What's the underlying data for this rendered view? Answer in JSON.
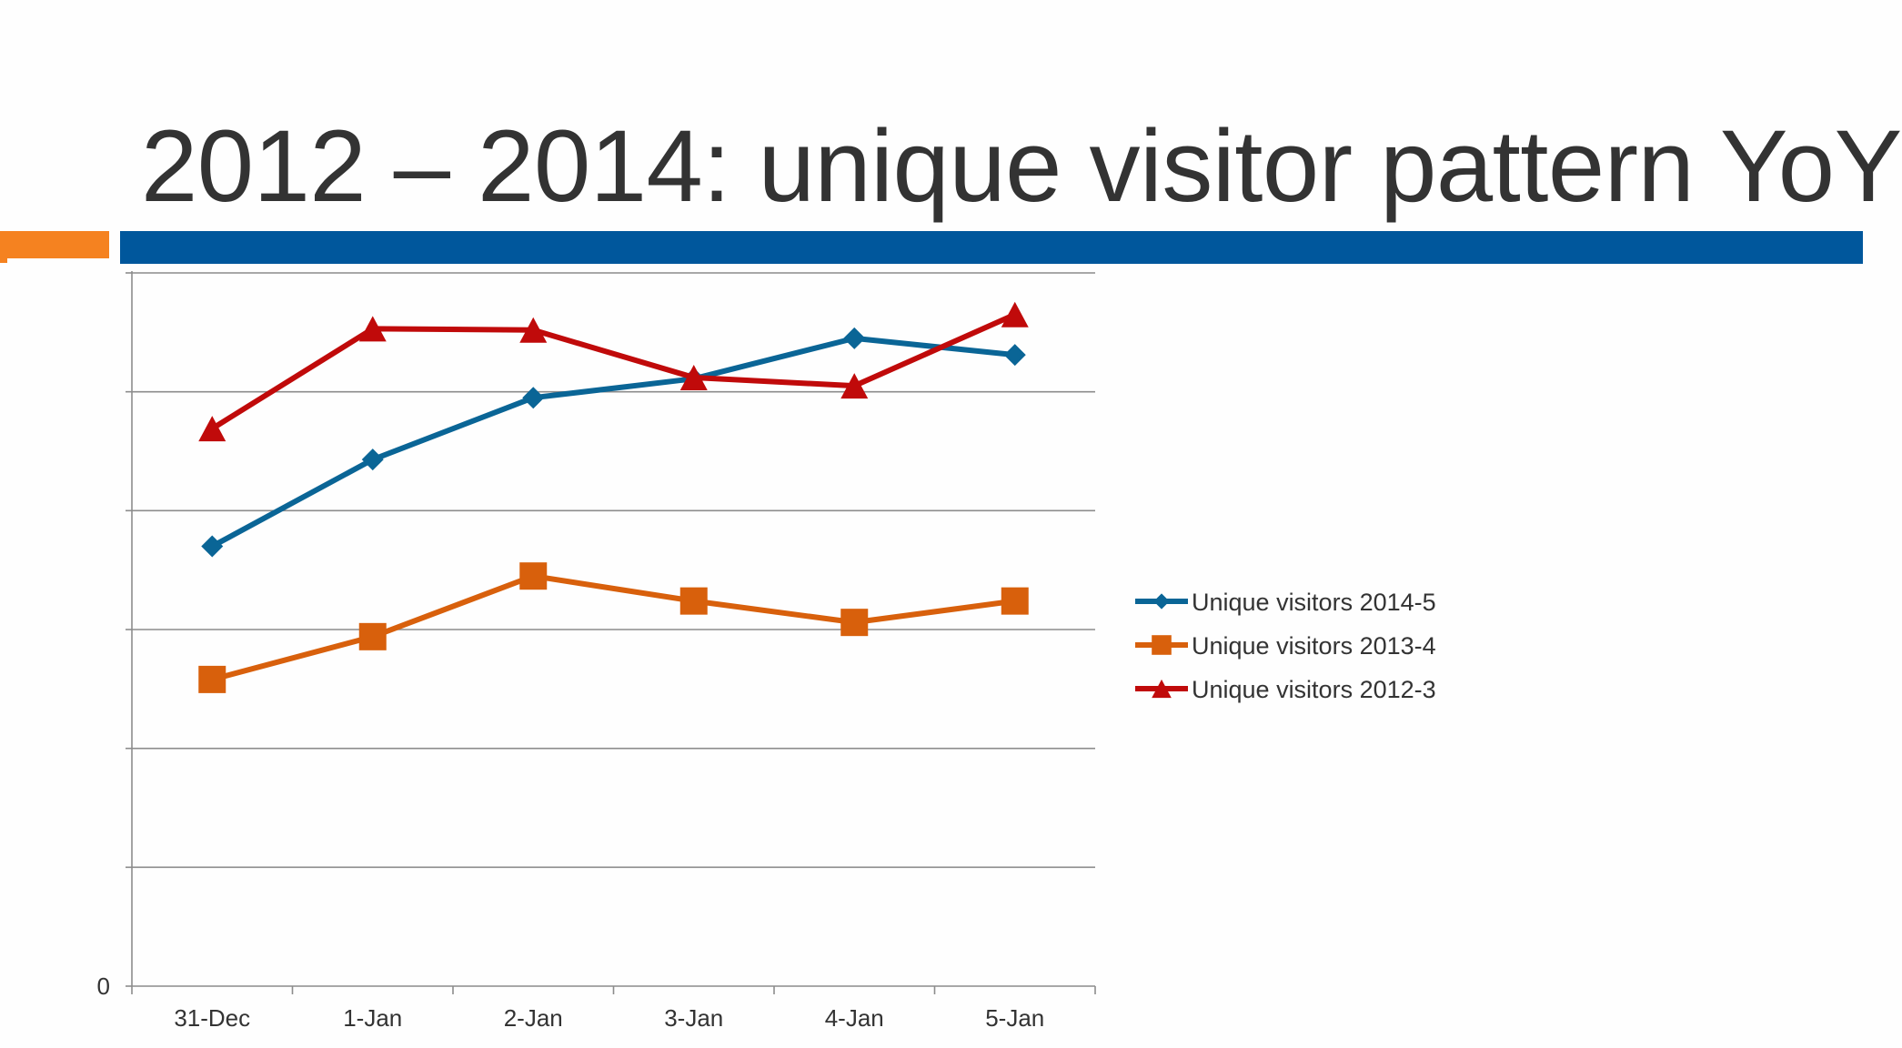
{
  "slide": {
    "title": "2012 – 2014: unique visitor pattern YoY"
  },
  "colors": {
    "title_text": "#333333",
    "accent_orange": "#f58220",
    "accent_blue": "#00579c"
  },
  "chart_data": {
    "type": "line",
    "title": "",
    "xlabel": "",
    "ylabel": "",
    "categories": [
      "31-Dec",
      "1-Jan",
      "2-Jan",
      "3-Jan",
      "4-Jan",
      "5-Jan"
    ],
    "y_tick_labels": [
      "0"
    ],
    "ylim": [
      0,
      6
    ],
    "grid": true,
    "legend_position": "right",
    "series": [
      {
        "name": "Unique visitors 2014-5",
        "color": "#0a6596",
        "marker": "diamond",
        "values": [
          3.7,
          4.43,
          4.95,
          5.11,
          5.45,
          5.31
        ]
      },
      {
        "name": "Unique visitors 2013-4",
        "color": "#d8600c",
        "marker": "square",
        "values": [
          2.58,
          2.94,
          3.45,
          3.24,
          3.06,
          3.24
        ]
      },
      {
        "name": "Unique visitors 2012-3",
        "color": "#c00a0a",
        "marker": "triangle",
        "values": [
          4.69,
          5.53,
          5.52,
          5.12,
          5.05,
          5.65
        ]
      }
    ]
  }
}
